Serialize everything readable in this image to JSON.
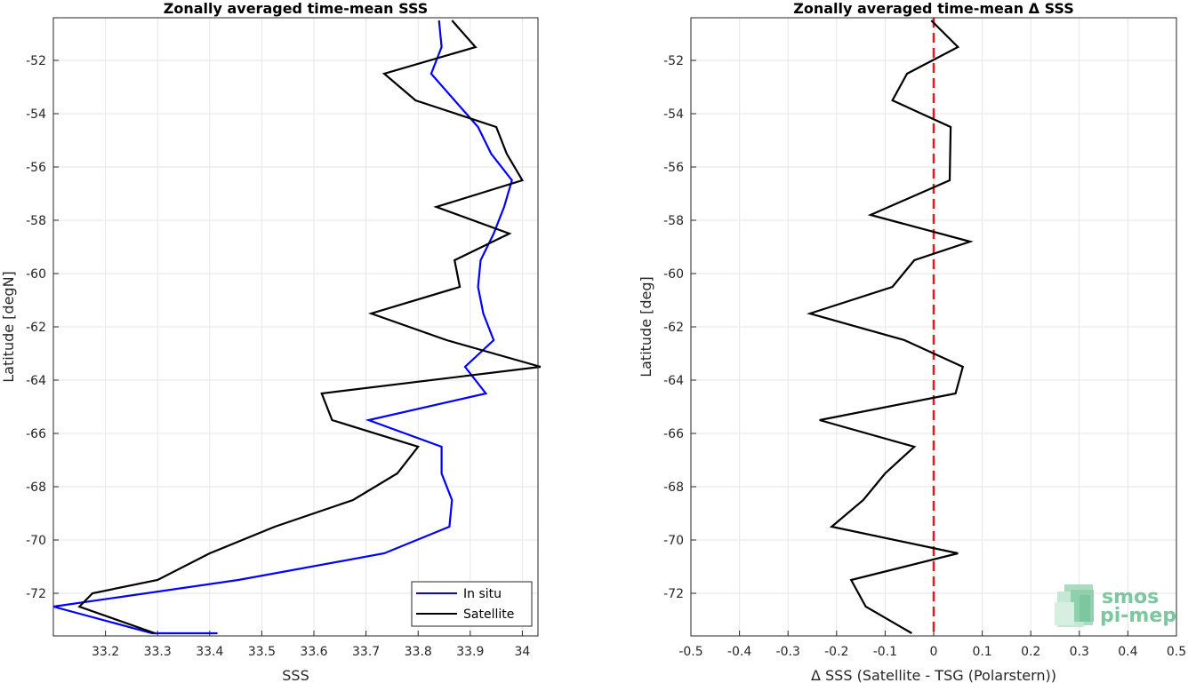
{
  "chart_data": [
    {
      "type": "line",
      "title": "Zonally averaged time-mean SSS",
      "xlabel": "SSS",
      "ylabel": "Latitude [degN]",
      "xlim": [
        33.1,
        34.03
      ],
      "ylim": [
        -73.6,
        -50.4
      ],
      "xticks": [
        33.2,
        33.3,
        33.4,
        33.5,
        33.6,
        33.7,
        33.8,
        33.9,
        34
      ],
      "xtick_labels": [
        "33.2",
        "33.3",
        "33.4",
        "33.5",
        "33.6",
        "33.7",
        "33.8",
        "33.9",
        "34"
      ],
      "yticks": [
        -52,
        -54,
        -56,
        -58,
        -60,
        -62,
        -64,
        -66,
        -68,
        -70,
        -72
      ],
      "ytick_labels": [
        "-52",
        "-54",
        "-56",
        "-58",
        "-60",
        "-62",
        "-64",
        "-66",
        "-68",
        "-70",
        "-72"
      ],
      "grid": true,
      "legend_position": "bottom-right",
      "series": [
        {
          "name": "In situ",
          "color": "#0000ff",
          "x": [
            33.84,
            33.845,
            33.825,
            33.87,
            33.915,
            33.94,
            33.98,
            33.965,
            33.945,
            33.92,
            33.915,
            33.925,
            33.945,
            33.89,
            33.93,
            33.705,
            33.845,
            33.845,
            33.865,
            33.86,
            33.735,
            33.455,
            33.1,
            33.29,
            33.415
          ],
          "y": [
            -50.5,
            -51.5,
            -52.5,
            -53.5,
            -54.5,
            -55.5,
            -56.5,
            -57.5,
            -58.5,
            -59.5,
            -60.5,
            -61.5,
            -62.5,
            -63.5,
            -64.5,
            -65.5,
            -66.5,
            -67.5,
            -68.5,
            -69.5,
            -70.5,
            -71.5,
            -72.5,
            -73.5,
            -73.5
          ]
        },
        {
          "name": "Satellite",
          "color": "#000000",
          "x": [
            33.865,
            33.91,
            33.735,
            33.795,
            33.95,
            33.97,
            34.0,
            33.835,
            33.975,
            33.87,
            33.88,
            33.71,
            33.855,
            34.035,
            33.615,
            33.635,
            33.8,
            33.76,
            33.675,
            33.525,
            33.4,
            33.3,
            33.175,
            33.15,
            33.295
          ],
          "y": [
            -50.5,
            -51.5,
            -52.5,
            -53.5,
            -54.5,
            -55.5,
            -56.5,
            -57.5,
            -58.5,
            -59.5,
            -60.5,
            -61.5,
            -62.5,
            -63.5,
            -64.5,
            -65.5,
            -66.5,
            -67.5,
            -68.5,
            -69.5,
            -70.5,
            -71.5,
            -72.0,
            -72.5,
            -73.5
          ]
        }
      ]
    },
    {
      "type": "line",
      "title": "Zonally averaged time-mean Δ SSS",
      "xlabel": "Δ SSS (Satellite - TSG (Polarstern))",
      "ylabel": "Latitude [deg]",
      "xlim": [
        -0.5,
        0.5
      ],
      "ylim": [
        -73.6,
        -50.4
      ],
      "xticks": [
        -0.5,
        -0.4,
        -0.3,
        -0.2,
        -0.1,
        0,
        0.1,
        0.2,
        0.3,
        0.4,
        0.5
      ],
      "xtick_labels": [
        "-0.5",
        "-0.4",
        "-0.3",
        "-0.2",
        "-0.1",
        "0",
        "0.1",
        "0.2",
        "0.3",
        "0.4",
        "0.5"
      ],
      "yticks": [
        -52,
        -54,
        -56,
        -58,
        -60,
        -62,
        -64,
        -66,
        -68,
        -70,
        -72
      ],
      "ytick_labels": [
        "-52",
        "-54",
        "-56",
        "-58",
        "-60",
        "-62",
        "-64",
        "-66",
        "-68",
        "-70",
        "-72"
      ],
      "grid": true,
      "reference_line": {
        "x": 0,
        "color": "#e41a1c",
        "style": "dashed"
      },
      "series": [
        {
          "color": "#000000",
          "x": [
            -0.005,
            0.05,
            -0.055,
            -0.085,
            0.035,
            0.033,
            -0.13,
            0.075,
            -0.04,
            -0.085,
            -0.255,
            -0.06,
            0.06,
            0.045,
            -0.235,
            -0.04,
            -0.1,
            -0.145,
            -0.21,
            0.05,
            -0.17,
            -0.14,
            -0.045
          ],
          "y": [
            -50.5,
            -51.5,
            -52.5,
            -53.5,
            -54.5,
            -56.5,
            -57.8,
            -58.8,
            -59.5,
            -60.5,
            -61.5,
            -62.5,
            -63.5,
            -64.5,
            -65.5,
            -66.5,
            -67.5,
            -68.5,
            -69.5,
            -70.5,
            -71.5,
            -72.5,
            -73.5
          ]
        }
      ]
    }
  ],
  "logo": {
    "line1": "smos",
    "line2": "pi-mep",
    "color": "#7cc6a0"
  }
}
